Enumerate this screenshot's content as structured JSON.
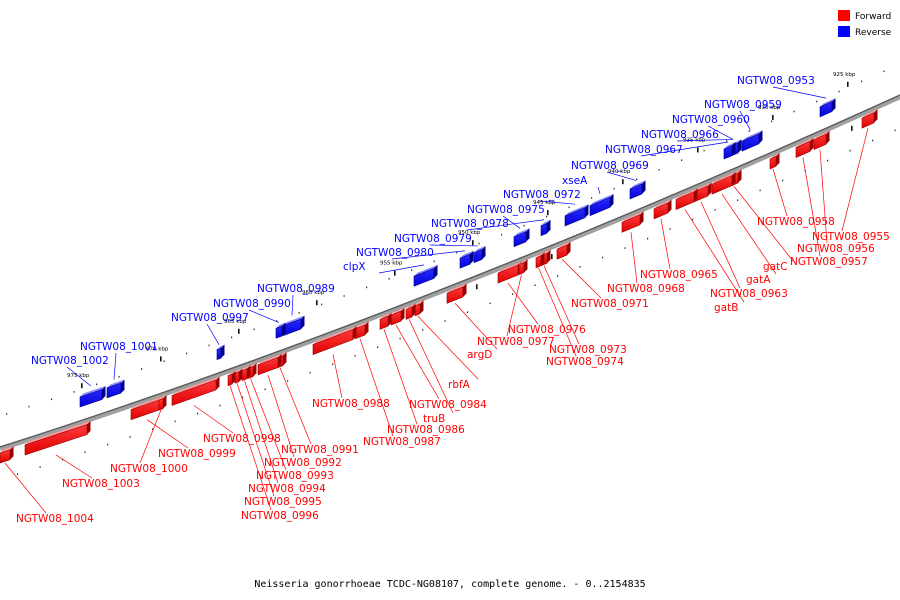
{
  "legend": {
    "items": [
      {
        "key": "forward",
        "label": "Forward",
        "color": "#ff0000"
      },
      {
        "key": "reverse",
        "label": "Reverse",
        "color": "#0000ff"
      }
    ]
  },
  "caption": "Neisseria gonorrhoeae TCDC-NG08107, complete genome. - 0..2154835",
  "ruler": [
    "925 kbp",
    "930 kbp",
    "935 kbp",
    "940 kbp",
    "945 kbp",
    "950 kbp",
    "955 kbp",
    "960 kbp",
    "965 kbp",
    "970 kbp",
    "975 kbp"
  ],
  "reverse_genes": [
    "NGTW08_0953",
    "NGTW08_0959",
    "NGTW08_0960",
    "NGTW08_0966",
    "NGTW08_0967",
    "NGTW08_0969",
    "xseA",
    "NGTW08_0972",
    "NGTW08_0975",
    "NGTW08_0978",
    "NGTW08_0979",
    "NGTW08_0980",
    "clpX",
    "NGTW08_0989",
    "NGTW08_0990",
    "NGTW08_0997",
    "NGTW08_1001",
    "NGTW08_1002"
  ],
  "forward_genes": [
    "NGTW08_0955",
    "NGTW08_0956",
    "NGTW08_0957",
    "NGTW08_0958",
    "gatC",
    "gatA",
    "NGTW08_0963",
    "gatB",
    "NGTW08_0965",
    "NGTW08_0968",
    "NGTW08_0971",
    "NGTW08_0973",
    "NGTW08_0974",
    "NGTW08_0976",
    "NGTW08_0977",
    "argD",
    "rbfA",
    "NGTW08_0984",
    "truB",
    "NGTW08_0986",
    "NGTW08_0987",
    "NGTW08_0988",
    "NGTW08_0991",
    "NGTW08_0992",
    "NGTW08_0993",
    "NGTW08_0994",
    "NGTW08_0995",
    "NGTW08_0996",
    "NGTW08_0998",
    "NGTW08_0999",
    "NGTW08_1000",
    "NGTW08_1003",
    "NGTW08_1004"
  ]
}
